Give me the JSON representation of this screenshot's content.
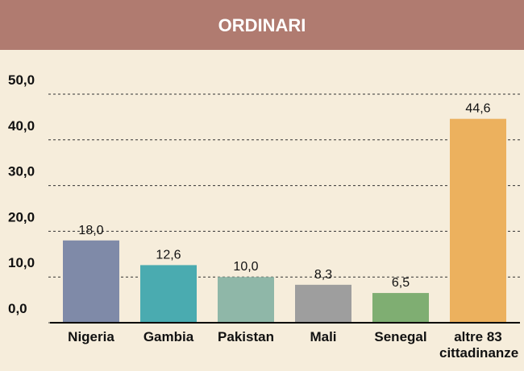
{
  "chart_data": {
    "type": "bar",
    "title": "ORDINARI",
    "categories": [
      "Nigeria",
      "Gambia",
      "Pakistan",
      "Mali",
      "Senegal",
      "altre 83 cittadinanze"
    ],
    "values": [
      18.0,
      12.6,
      10.0,
      8.3,
      6.5,
      44.6
    ],
    "value_labels": [
      "18,0",
      "12,6",
      "10,0",
      "8,3",
      "6,5",
      "44,6"
    ],
    "colors": [
      "#7f8aa8",
      "#4aabb0",
      "#8fb7a8",
      "#9e9e9e",
      "#7fae72",
      "#ecb15e"
    ],
    "ylim": [
      0,
      50
    ],
    "yticks": [
      {
        "value": 0,
        "label": "0,0"
      },
      {
        "value": 10,
        "label": "10,0"
      },
      {
        "value": 20,
        "label": "20,0"
      },
      {
        "value": 30,
        "label": "30,0"
      },
      {
        "value": 40,
        "label": "40,0"
      },
      {
        "value": 50,
        "label": "50,0"
      }
    ],
    "grid": true
  }
}
